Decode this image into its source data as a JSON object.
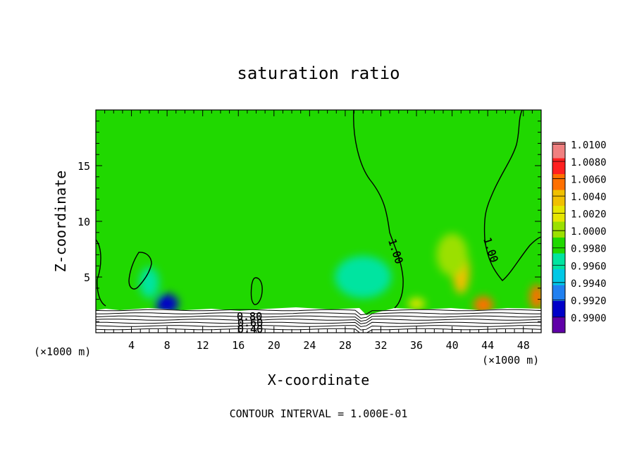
{
  "chart_data": {
    "type": "heatmap",
    "title": "saturation ratio",
    "xlabel": "X-coordinate",
    "ylabel": "Z-coordinate",
    "x_unit_label": "(×1000 m)",
    "footer": "CONTOUR INTERVAL = 1.000E-01",
    "xlim": [
      0,
      50
    ],
    "ylim": [
      0,
      20
    ],
    "x_ticks": [
      4,
      8,
      12,
      16,
      20,
      24,
      28,
      32,
      36,
      40,
      44,
      48
    ],
    "y_ticks": [
      5,
      10,
      15
    ],
    "colorbar": {
      "levels": [
        0.99,
        0.992,
        0.994,
        0.996,
        0.998,
        1.0,
        1.002,
        1.004,
        1.006,
        1.008,
        1.01
      ],
      "labels": [
        "1.0100",
        "1.0080",
        "1.0060",
        "1.0040",
        "1.0020",
        "1.0000",
        "0.9980",
        "0.9960",
        "0.9940",
        "0.9920",
        "0.9900"
      ],
      "colors": [
        "#f08080",
        "#ff2020",
        "#ff7000",
        "#f0c000",
        "#e6e600",
        "#9be000",
        "#20d800",
        "#00e4a0",
        "#00c8e6",
        "#2080f0",
        "#0000c8",
        "#6000a8"
      ]
    },
    "contour_labels": [
      "1.00",
      "1.00",
      "0.80",
      "0.60",
      "0.40"
    ],
    "features": [
      {
        "x": 41,
        "z": 5.5,
        "value": 1.007
      },
      {
        "x": 40,
        "z": 7,
        "value": 1.003
      },
      {
        "x": 43.5,
        "z": 2.5,
        "value": 1.008
      },
      {
        "x": 49.5,
        "z": 3.2,
        "value": 1.008
      },
      {
        "x": 36,
        "z": 2.6,
        "value": 1.004
      },
      {
        "x": 8,
        "z": 2.6,
        "value": 0.993
      },
      {
        "x": 6,
        "z": 4.5,
        "value": 0.9985
      },
      {
        "x": 30,
        "z": 5,
        "value": 0.9985
      }
    ]
  }
}
